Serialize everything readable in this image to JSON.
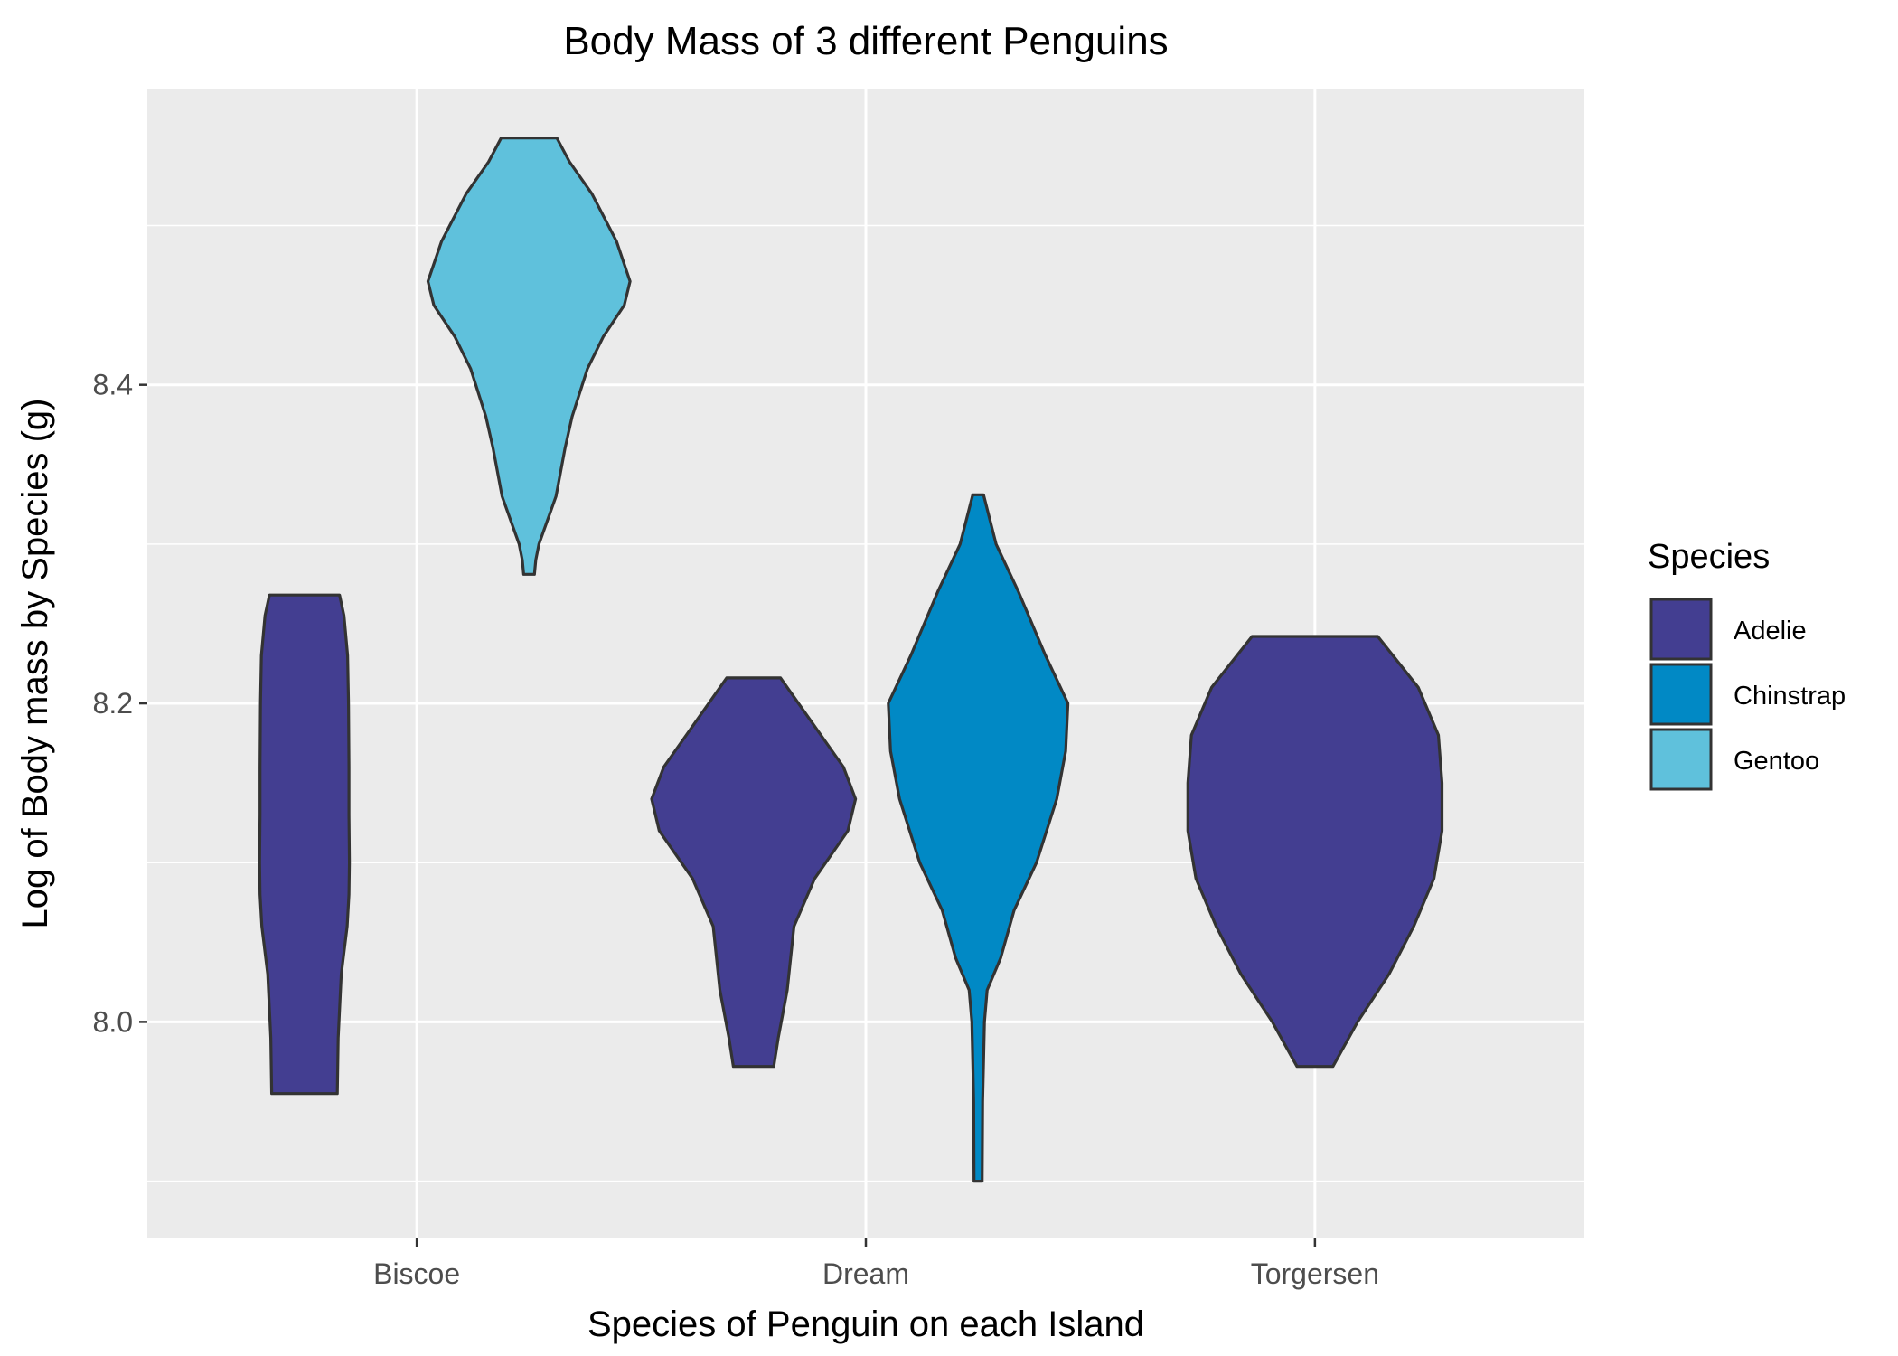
{
  "chart_data": {
    "type": "violin",
    "title": "Body Mass of 3 different Penguins",
    "xlabel": "Species of Penguin on each Island",
    "ylabel": "Log of Body mass by Species (g)",
    "categories": [
      "Biscoe",
      "Dream",
      "Torgersen"
    ],
    "y_ticks": [
      8.0,
      8.2,
      8.4
    ],
    "y_tick_labels": [
      "8.0",
      "8.2",
      "8.4"
    ],
    "ylim": [
      7.864,
      8.586
    ],
    "grid": true,
    "legend": {
      "title": "Species",
      "position": "right",
      "entries": [
        "Adelie",
        "Chinstrap",
        "Gentoo"
      ]
    },
    "colors": {
      "Adelie": "#433E91",
      "Chinstrap": "#0189C5",
      "Gentoo": "#5FC1DC",
      "panel_background": "#EBEBEB",
      "grid": "#FFFFFF",
      "outline": "#333333"
    },
    "series": [
      {
        "species": "Adelie",
        "island": "Biscoe",
        "category_offset": -0.25,
        "profile": [
          [
            7.955,
            0.073
          ],
          [
            7.99,
            0.075
          ],
          [
            8.03,
            0.082
          ],
          [
            8.06,
            0.095
          ],
          [
            8.08,
            0.099
          ],
          [
            8.1,
            0.1
          ],
          [
            8.13,
            0.099
          ],
          [
            8.16,
            0.099
          ],
          [
            8.2,
            0.098
          ],
          [
            8.23,
            0.096
          ],
          [
            8.255,
            0.088
          ],
          [
            8.268,
            0.078
          ]
        ]
      },
      {
        "species": "Gentoo",
        "island": "Biscoe",
        "category_offset": 0.25,
        "profile": [
          [
            8.281,
            0.012
          ],
          [
            8.29,
            0.015
          ],
          [
            8.3,
            0.022
          ],
          [
            8.33,
            0.06
          ],
          [
            8.36,
            0.08
          ],
          [
            8.38,
            0.096
          ],
          [
            8.41,
            0.13
          ],
          [
            8.43,
            0.165
          ],
          [
            8.45,
            0.212
          ],
          [
            8.465,
            0.225
          ],
          [
            8.49,
            0.195
          ],
          [
            8.52,
            0.14
          ],
          [
            8.54,
            0.09
          ],
          [
            8.555,
            0.062
          ]
        ]
      },
      {
        "species": "Adelie",
        "island": "Dream",
        "category_offset": -0.25,
        "profile": [
          [
            7.972,
            0.045
          ],
          [
            7.99,
            0.055
          ],
          [
            8.02,
            0.075
          ],
          [
            8.06,
            0.09
          ],
          [
            8.09,
            0.136
          ],
          [
            8.12,
            0.21
          ],
          [
            8.14,
            0.227
          ],
          [
            8.16,
            0.2
          ],
          [
            8.19,
            0.125
          ],
          [
            8.216,
            0.06
          ]
        ]
      },
      {
        "species": "Chinstrap",
        "island": "Dream",
        "category_offset": 0.25,
        "profile": [
          [
            7.9,
            0.009
          ],
          [
            7.95,
            0.01
          ],
          [
            8.0,
            0.014
          ],
          [
            8.02,
            0.02
          ],
          [
            8.04,
            0.05
          ],
          [
            8.07,
            0.08
          ],
          [
            8.1,
            0.13
          ],
          [
            8.14,
            0.175
          ],
          [
            8.17,
            0.195
          ],
          [
            8.2,
            0.2
          ],
          [
            8.23,
            0.15
          ],
          [
            8.27,
            0.09
          ],
          [
            8.3,
            0.04
          ],
          [
            8.331,
            0.012
          ]
        ]
      },
      {
        "species": "Adelie",
        "island": "Torgersen",
        "category_offset": 0,
        "profile": [
          [
            7.972,
            0.04
          ],
          [
            8.0,
            0.095
          ],
          [
            8.03,
            0.165
          ],
          [
            8.06,
            0.22
          ],
          [
            8.09,
            0.265
          ],
          [
            8.12,
            0.283
          ],
          [
            8.15,
            0.283
          ],
          [
            8.18,
            0.275
          ],
          [
            8.21,
            0.23
          ],
          [
            8.242,
            0.14
          ]
        ]
      }
    ]
  }
}
